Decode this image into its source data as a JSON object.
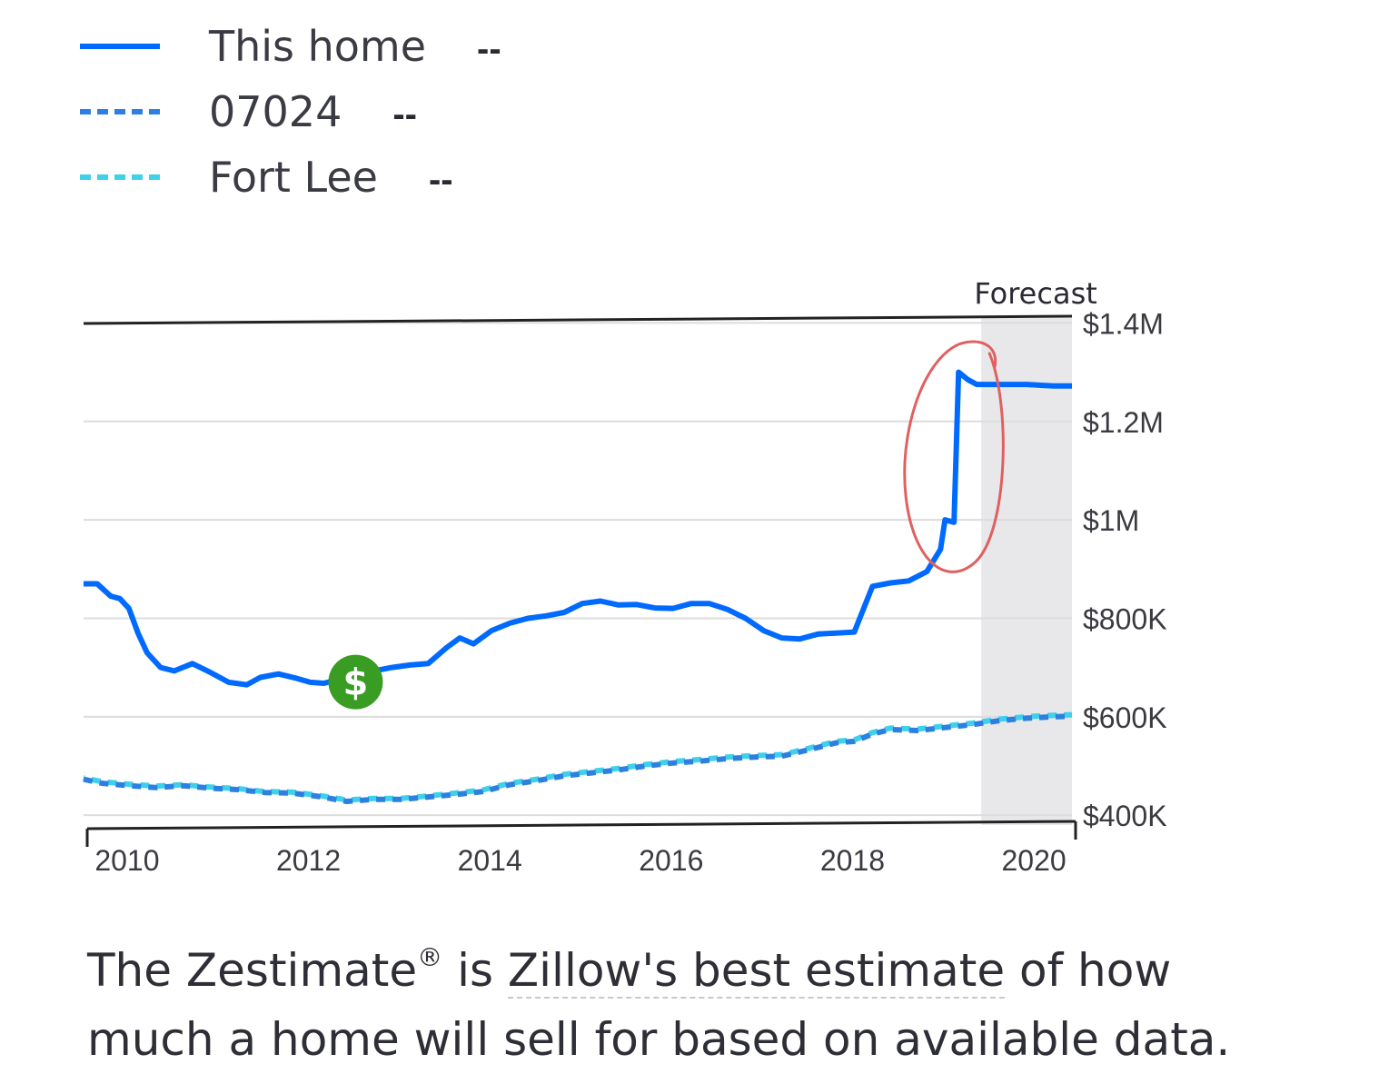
{
  "legend": [
    {
      "label": "This home",
      "value": "--",
      "color": "#006aff",
      "style": "solid"
    },
    {
      "label": "07024",
      "value": "--",
      "color": "#2d7fe0",
      "style": "dashed"
    },
    {
      "label": "Fort Lee",
      "value": "--",
      "color": "#3fd0ea",
      "style": "dashed"
    }
  ],
  "caption": {
    "prefix": "The Zestimate",
    "reg": "®",
    "mid": " is ",
    "link": "Zillow's best estimate",
    "suffix": " of how much a home will sell for based on available data."
  },
  "marker": {
    "icon": "dollar-sign-icon",
    "glyph": "$",
    "x": 2012.5,
    "color": "#3a9d23"
  },
  "annotation": {
    "type": "hand-drawn-circle",
    "color": "#e06060",
    "around": "2019 jump"
  },
  "chart_data": {
    "type": "line",
    "forecast_label": "Forecast",
    "forecast_start": 2019.4,
    "x_ticks": [
      2010,
      2012,
      2014,
      2016,
      2018,
      2020
    ],
    "y_ticks": [
      400000,
      600000,
      800000,
      1000000,
      1200000,
      1400000
    ],
    "y_tick_labels": [
      "$400K",
      "$600K",
      "$800K",
      "$1M",
      "$1.2M",
      "$1.4M"
    ],
    "xlim": [
      2009.5,
      2020.4
    ],
    "ylim": [
      380000,
      1410000
    ],
    "y_axis_position": "right",
    "grid": true,
    "series": [
      {
        "name": "This home",
        "color": "#006aff",
        "dash": "solid",
        "points": [
          [
            2009.5,
            870000
          ],
          [
            2009.65,
            870000
          ],
          [
            2009.8,
            845000
          ],
          [
            2009.9,
            840000
          ],
          [
            2010.0,
            820000
          ],
          [
            2010.1,
            770000
          ],
          [
            2010.2,
            730000
          ],
          [
            2010.35,
            700000
          ],
          [
            2010.5,
            693000
          ],
          [
            2010.7,
            708000
          ],
          [
            2010.9,
            690000
          ],
          [
            2011.1,
            670000
          ],
          [
            2011.3,
            665000
          ],
          [
            2011.45,
            680000
          ],
          [
            2011.65,
            687000
          ],
          [
            2011.85,
            678000
          ],
          [
            2012.0,
            670000
          ],
          [
            2012.15,
            668000
          ],
          [
            2012.3,
            675000
          ],
          [
            2012.5,
            685000
          ],
          [
            2012.7,
            693000
          ],
          [
            2012.9,
            700000
          ],
          [
            2013.1,
            705000
          ],
          [
            2013.3,
            708000
          ],
          [
            2013.5,
            740000
          ],
          [
            2013.65,
            760000
          ],
          [
            2013.8,
            748000
          ],
          [
            2014.0,
            775000
          ],
          [
            2014.2,
            790000
          ],
          [
            2014.4,
            800000
          ],
          [
            2014.6,
            805000
          ],
          [
            2014.8,
            812000
          ],
          [
            2015.0,
            830000
          ],
          [
            2015.2,
            835000
          ],
          [
            2015.4,
            827000
          ],
          [
            2015.6,
            828000
          ],
          [
            2015.8,
            821000
          ],
          [
            2016.0,
            820000
          ],
          [
            2016.2,
            830000
          ],
          [
            2016.4,
            830000
          ],
          [
            2016.6,
            818000
          ],
          [
            2016.8,
            800000
          ],
          [
            2017.0,
            775000
          ],
          [
            2017.2,
            760000
          ],
          [
            2017.4,
            758000
          ],
          [
            2017.6,
            768000
          ],
          [
            2017.8,
            770000
          ],
          [
            2018.0,
            772000
          ],
          [
            2018.2,
            865000
          ],
          [
            2018.4,
            872000
          ],
          [
            2018.6,
            876000
          ],
          [
            2018.8,
            895000
          ],
          [
            2018.95,
            940000
          ],
          [
            2019.0,
            1000000
          ],
          [
            2019.1,
            995000
          ],
          [
            2019.15,
            1300000
          ],
          [
            2019.25,
            1285000
          ],
          [
            2019.35,
            1275000
          ],
          [
            2019.6,
            1275000
          ],
          [
            2019.9,
            1275000
          ],
          [
            2020.2,
            1272000
          ],
          [
            2020.4,
            1272000
          ]
        ]
      },
      {
        "name": "07024",
        "color": "#2d7fe0",
        "dash": "dashed",
        "points": [
          [
            2009.5,
            473000
          ],
          [
            2009.7,
            465000
          ],
          [
            2010.0,
            460000
          ],
          [
            2010.3,
            456000
          ],
          [
            2010.6,
            460000
          ],
          [
            2010.9,
            455000
          ],
          [
            2011.2,
            452000
          ],
          [
            2011.5,
            446000
          ],
          [
            2011.8,
            445000
          ],
          [
            2012.1,
            438000
          ],
          [
            2012.4,
            428000
          ],
          [
            2012.7,
            432000
          ],
          [
            2013.0,
            432000
          ],
          [
            2013.3,
            437000
          ],
          [
            2013.6,
            442000
          ],
          [
            2013.9,
            448000
          ],
          [
            2014.2,
            462000
          ],
          [
            2014.5,
            470000
          ],
          [
            2014.8,
            480000
          ],
          [
            2015.1,
            486000
          ],
          [
            2015.4,
            492000
          ],
          [
            2015.7,
            500000
          ],
          [
            2016.0,
            506000
          ],
          [
            2016.3,
            510000
          ],
          [
            2016.6,
            515000
          ],
          [
            2016.9,
            518000
          ],
          [
            2017.2,
            520000
          ],
          [
            2017.5,
            533000
          ],
          [
            2017.8,
            547000
          ],
          [
            2018.0,
            550000
          ],
          [
            2018.2,
            565000
          ],
          [
            2018.4,
            574000
          ],
          [
            2018.7,
            572000
          ],
          [
            2019.0,
            578000
          ],
          [
            2019.3,
            584000
          ],
          [
            2019.6,
            592000
          ],
          [
            2019.9,
            597000
          ],
          [
            2020.2,
            600000
          ],
          [
            2020.4,
            601000
          ]
        ]
      },
      {
        "name": "Fort Lee",
        "color": "#3fd0ea",
        "dash": "dashed",
        "points": [
          [
            2009.5,
            476000
          ],
          [
            2009.7,
            468000
          ],
          [
            2010.0,
            463000
          ],
          [
            2010.3,
            459000
          ],
          [
            2010.6,
            462000
          ],
          [
            2010.9,
            457000
          ],
          [
            2011.2,
            454000
          ],
          [
            2011.5,
            448000
          ],
          [
            2011.8,
            447000
          ],
          [
            2012.1,
            440000
          ],
          [
            2012.4,
            431000
          ],
          [
            2012.7,
            434000
          ],
          [
            2013.0,
            434000
          ],
          [
            2013.3,
            439000
          ],
          [
            2013.6,
            445000
          ],
          [
            2013.9,
            451000
          ],
          [
            2014.2,
            465000
          ],
          [
            2014.5,
            473000
          ],
          [
            2014.8,
            483000
          ],
          [
            2015.1,
            489000
          ],
          [
            2015.4,
            495000
          ],
          [
            2015.7,
            503000
          ],
          [
            2016.0,
            509000
          ],
          [
            2016.3,
            513000
          ],
          [
            2016.6,
            518000
          ],
          [
            2016.9,
            521000
          ],
          [
            2017.2,
            523000
          ],
          [
            2017.5,
            536000
          ],
          [
            2017.8,
            550000
          ],
          [
            2018.0,
            553000
          ],
          [
            2018.2,
            568000
          ],
          [
            2018.4,
            577000
          ],
          [
            2018.7,
            575000
          ],
          [
            2019.0,
            581000
          ],
          [
            2019.3,
            587000
          ],
          [
            2019.6,
            595000
          ],
          [
            2019.9,
            600000
          ],
          [
            2020.2,
            603000
          ],
          [
            2020.4,
            604000
          ]
        ]
      }
    ]
  }
}
